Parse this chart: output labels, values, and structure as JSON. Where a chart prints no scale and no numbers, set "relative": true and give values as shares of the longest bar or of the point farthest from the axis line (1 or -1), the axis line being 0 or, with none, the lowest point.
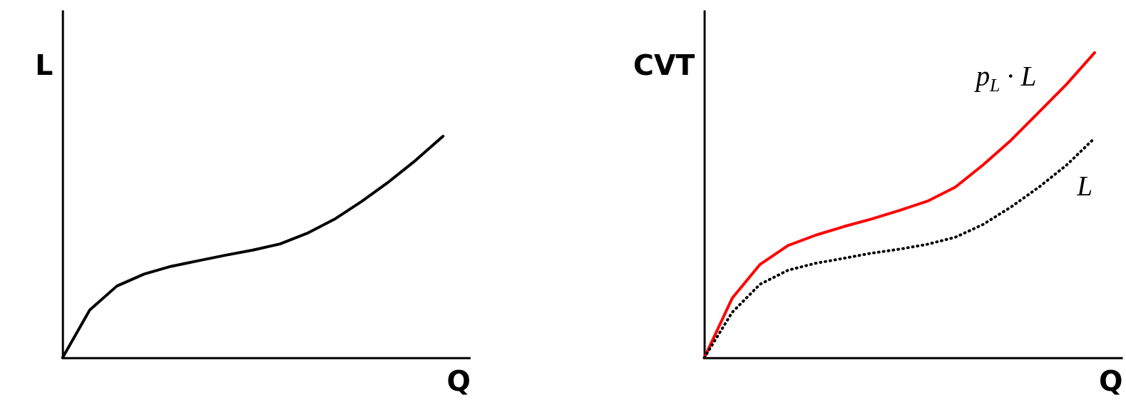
{
  "chart_data": [
    {
      "type": "line",
      "relative": true,
      "xlabel": "Q",
      "ylabel": "L",
      "grid": false,
      "marker": "none",
      "categories": [
        null,
        null,
        null,
        null,
        null,
        null,
        null,
        null,
        null,
        null,
        null,
        null,
        null,
        null,
        null,
        null
      ],
      "series": [
        {
          "color": "#000000",
          "line_style": "solid",
          "values": [
            0,
            0.216,
            0.324,
            0.378,
            0.413,
            0.438,
            0.463,
            0.486,
            0.514,
            0.562,
            0.625,
            0.705,
            0.794,
            0.892,
            1,
            null
          ]
        }
      ]
    },
    {
      "type": "line",
      "relative": true,
      "xlabel": "Q",
      "ylabel": "CVT",
      "grid": false,
      "marker": "none",
      "categories": [
        null,
        null,
        null,
        null,
        null,
        null,
        null,
        null,
        null,
        null,
        null,
        null,
        null,
        null,
        null,
        null
      ],
      "series": [
        {
          "name": "p$_{L}$ · L",
          "color": "#ff0000",
          "line_style": "solid",
          "values": [
            0,
            0.195,
            0.306,
            0.368,
            0.402,
            0.43,
            0.455,
            0.483,
            0.513,
            0.559,
            0.632,
            0.713,
            0.805,
            0.897,
            1,
            null
          ]
        },
        {
          "name": "L",
          "color": "#000000",
          "line_style": "dotted",
          "values": [
            0,
            0.149,
            0.241,
            0.287,
            0.31,
            0.326,
            0.343,
            0.356,
            0.372,
            0.395,
            0.437,
            0.494,
            0.559,
            0.632,
            0.72,
            null
          ]
        }
      ]
    }
  ]
}
